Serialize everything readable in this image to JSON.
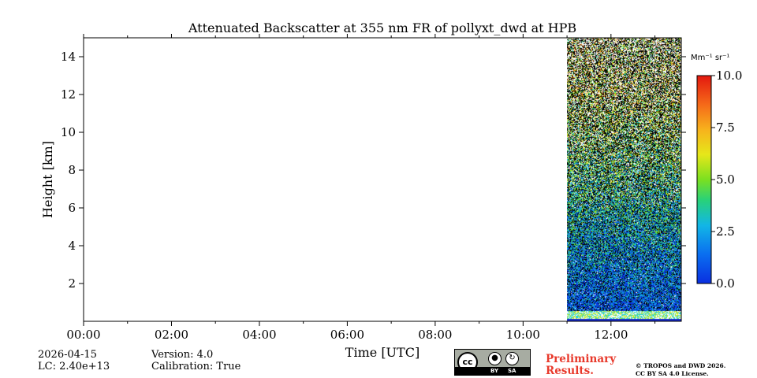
{
  "chart_data": {
    "type": "heatmap",
    "title": "Attenuated Backscatter at 355 nm FR of pollyxt_dwd at HPB",
    "xlabel": "Time [UTC]",
    "ylabel": "Height [km]",
    "x_range_hours": [
      0,
      13.6
    ],
    "ylim": [
      0,
      15
    ],
    "x_ticks": [
      "00:00",
      "02:00",
      "04:00",
      "06:00",
      "08:00",
      "10:00",
      "12:00"
    ],
    "x_tick_values": [
      0,
      2,
      4,
      6,
      8,
      10,
      12
    ],
    "y_ticks": [
      "2",
      "4",
      "6",
      "8",
      "10",
      "12",
      "14"
    ],
    "y_tick_values": [
      2,
      4,
      6,
      8,
      10,
      12,
      14
    ],
    "data_start_hour": 11.0,
    "data_end_hour": 13.6,
    "profile_description": "noisy measurements; strong near-surface layer below ~0.6 km",
    "colorbar": {
      "label": "Mm⁻¹ sr⁻¹",
      "min": 0,
      "max": 10,
      "ticks": [
        "0.0",
        "2.5",
        "5.0",
        "7.5",
        "10.0"
      ],
      "tick_values": [
        0,
        2.5,
        5,
        7.5,
        10
      ],
      "colormap": "jet"
    }
  },
  "footer": {
    "date": "2026-04-15",
    "lc": "LC: 2.40e+13",
    "version": "Version: 4.0",
    "calibration": "Calibration: True",
    "preliminary_line1": "Preliminary",
    "preliminary_line2": "Results.",
    "copyright_line1": "© TROPOS and DWD 2026.",
    "copyright_line2": "CC BY SA 4.0 License.",
    "license_badge": {
      "cc": "cc",
      "by": "BY",
      "sa": "SA"
    }
  },
  "colors": {
    "preliminary": "#e8392b",
    "background": "#ffffff",
    "plot_bg": "#ffffff",
    "axis": "#000000"
  }
}
